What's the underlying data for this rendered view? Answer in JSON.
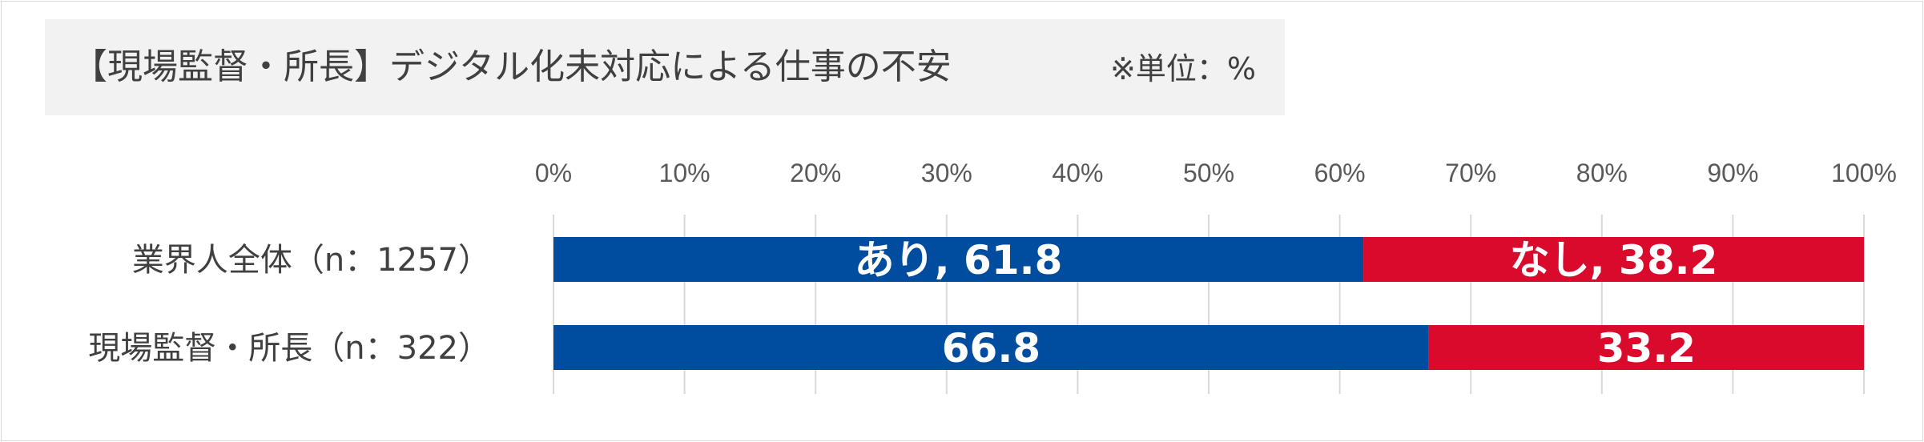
{
  "title": "【現場監督・所長】デジタル化未対応による仕事の不安",
  "unit_note": "※単位：%",
  "colors": {
    "ari": "#004c9e",
    "nashi": "#d90a2c",
    "grid": "#d9d9d9",
    "title_bg": "#f2f2f2"
  },
  "chart_data": {
    "type": "bar",
    "orientation": "horizontal",
    "stacked": true,
    "title": "【現場監督・所長】デジタル化未対応による仕事の不安",
    "xlim": [
      0,
      100
    ],
    "x_ticks": [
      "0%",
      "10%",
      "20%",
      "30%",
      "40%",
      "50%",
      "60%",
      "70%",
      "80%",
      "90%",
      "100%"
    ],
    "x_tick_position": "top",
    "grid": true,
    "categories": [
      "業界人全体（n：1257）",
      "現場監督・所長（n：322）"
    ],
    "series": [
      {
        "name": "あり",
        "values": [
          61.8,
          66.8
        ],
        "labels": [
          "あり, 61.8",
          "66.8"
        ]
      },
      {
        "name": "なし",
        "values": [
          38.2,
          33.2
        ],
        "labels": [
          "なし, 38.2",
          "33.2"
        ]
      }
    ]
  }
}
